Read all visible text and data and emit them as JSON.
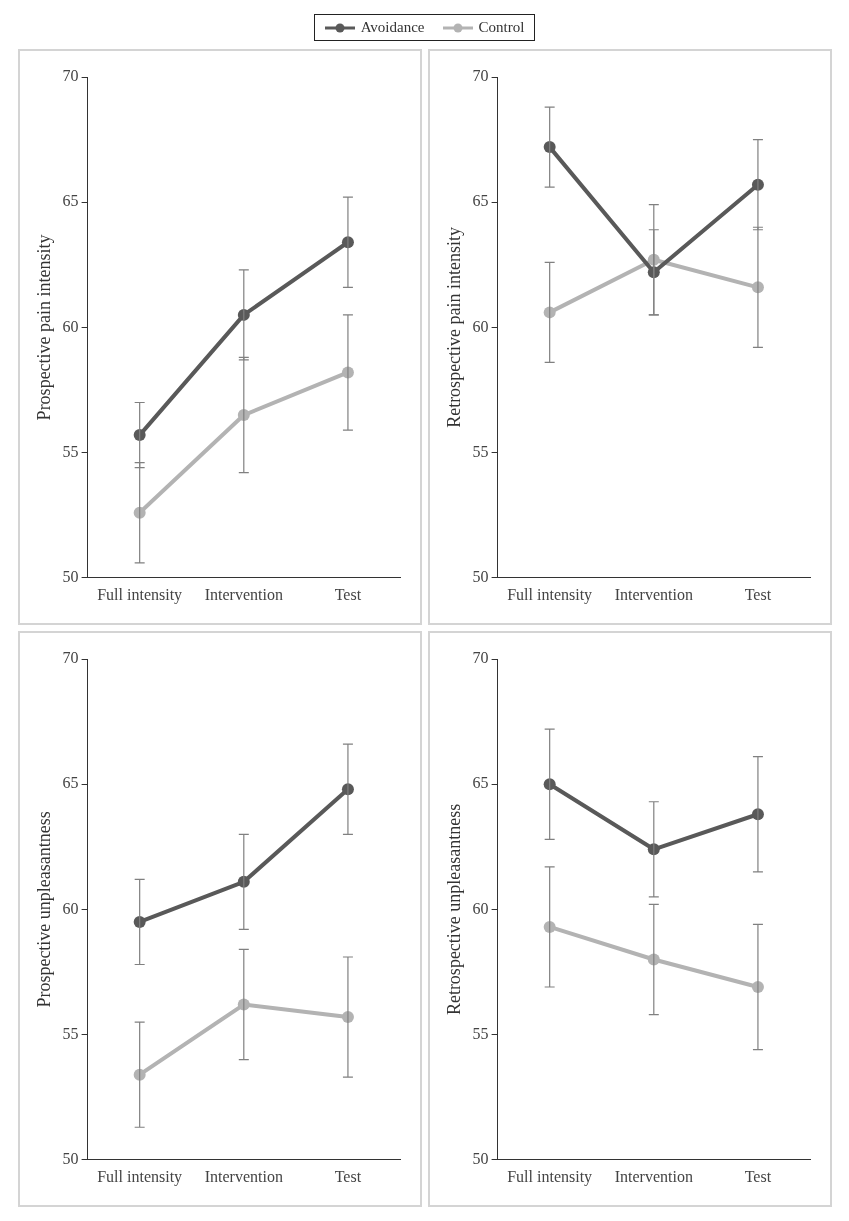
{
  "chart_data": [
    {
      "type": "line",
      "categories": [
        "Full intensity",
        "Intervention",
        "Test"
      ],
      "ylabel": "Prospective pain intensity",
      "ylim": [
        50,
        70
      ],
      "yticks": [
        50,
        55,
        60,
        65,
        70
      ],
      "grid": false,
      "legend": "top",
      "marker": "circle",
      "series": [
        {
          "name": "Avoidance",
          "color": "#595959",
          "values": [
            55.7,
            60.5,
            63.4
          ],
          "errors": [
            1.3,
            1.8,
            1.8
          ]
        },
        {
          "name": "Control",
          "color": "#b3b3b3",
          "values": [
            52.6,
            56.5,
            58.2
          ],
          "errors": [
            2.0,
            2.3,
            2.3
          ]
        }
      ]
    },
    {
      "type": "line",
      "categories": [
        "Full intensity",
        "Intervention",
        "Test"
      ],
      "ylabel": "Retrospective pain intensity",
      "ylim": [
        50,
        70
      ],
      "yticks": [
        50,
        55,
        60,
        65,
        70
      ],
      "grid": false,
      "legend": "top",
      "marker": "circle",
      "series": [
        {
          "name": "Avoidance",
          "color": "#595959",
          "values": [
            67.2,
            62.2,
            65.7
          ],
          "errors": [
            1.6,
            1.7,
            1.8
          ]
        },
        {
          "name": "Control",
          "color": "#b3b3b3",
          "values": [
            60.6,
            62.7,
            61.6
          ],
          "errors": [
            2.0,
            2.2,
            2.4
          ]
        }
      ]
    },
    {
      "type": "line",
      "categories": [
        "Full intensity",
        "Intervention",
        "Test"
      ],
      "ylabel": "Prospective unpleasantness",
      "ylim": [
        50,
        70
      ],
      "yticks": [
        50,
        55,
        60,
        65,
        70
      ],
      "grid": false,
      "legend": "top",
      "marker": "circle",
      "series": [
        {
          "name": "Avoidance",
          "color": "#595959",
          "values": [
            59.5,
            61.1,
            64.8
          ],
          "errors": [
            1.7,
            1.9,
            1.8
          ]
        },
        {
          "name": "Control",
          "color": "#b3b3b3",
          "values": [
            53.4,
            56.2,
            55.7
          ],
          "errors": [
            2.1,
            2.2,
            2.4
          ]
        }
      ]
    },
    {
      "type": "line",
      "categories": [
        "Full intensity",
        "Intervention",
        "Test"
      ],
      "ylabel": "Retrospective unpleasantness",
      "ylim": [
        50,
        70
      ],
      "yticks": [
        50,
        55,
        60,
        65,
        70
      ],
      "grid": false,
      "legend": "top",
      "marker": "circle",
      "series": [
        {
          "name": "Avoidance",
          "color": "#595959",
          "values": [
            65.0,
            62.4,
            63.8
          ],
          "errors": [
            2.2,
            1.9,
            2.3
          ]
        },
        {
          "name": "Control",
          "color": "#b3b3b3",
          "values": [
            59.3,
            58.0,
            56.9
          ],
          "errors": [
            2.4,
            2.2,
            2.5
          ]
        }
      ]
    }
  ]
}
